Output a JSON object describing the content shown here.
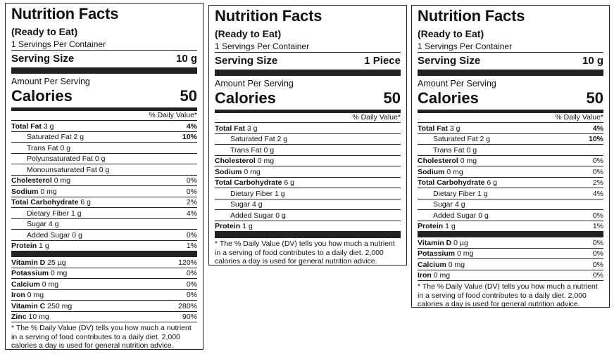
{
  "labels": [
    {
      "title": "Nutrition Facts",
      "subtitle": "(Ready to Eat)",
      "servings_per_container": "1 Servings Per Container",
      "serving_size_label": "Serving Size",
      "serving_size_value": "10 g",
      "amount_per_serving": "Amount Per Serving",
      "calories_label": "Calories",
      "calories_value": "50",
      "dv_header": "% Daily Value*",
      "rows": [
        {
          "name": "Total Fat",
          "amount": "3 g",
          "pct": "4%"
        },
        {
          "name": "Saturated Fat",
          "amount": "2 g",
          "pct": "10%"
        },
        {
          "name": "Trans Fat",
          "amount": "0 g",
          "pct": ""
        },
        {
          "name": "Polyunsaturated Fat",
          "amount": "0 g",
          "pct": ""
        },
        {
          "name": "Monounsaturated Fat",
          "amount": "0 g",
          "pct": ""
        },
        {
          "name": "Cholesterol",
          "amount": "0 mg",
          "pct": "0%"
        },
        {
          "name": "Sodium",
          "amount": "0 mg",
          "pct": "0%"
        },
        {
          "name": "Total Carbohydrate",
          "amount": "6 g",
          "pct": "2%"
        },
        {
          "name": "Dietary Fiber",
          "amount": "1 g",
          "pct": "4%"
        },
        {
          "name": "Sugar",
          "amount": "4 g",
          "pct": ""
        },
        {
          "name": "Added Sugar",
          "amount": "0 g",
          "pct": "0%"
        },
        {
          "name": "Protein",
          "amount": "1 g",
          "pct": "1%"
        }
      ],
      "vitamins": [
        {
          "name": "Vitamin D",
          "amount": "25 µg",
          "pct": "120%"
        },
        {
          "name": "Potassium",
          "amount": "0 mg",
          "pct": "0%"
        },
        {
          "name": "Calcium",
          "amount": "0 mg",
          "pct": "0%"
        },
        {
          "name": "Iron",
          "amount": "0 mg",
          "pct": "0%"
        },
        {
          "name": "Vitamin C",
          "amount": "250 mg",
          "pct": "280%"
        },
        {
          "name": "Zinc",
          "amount": "10 mg",
          "pct": "90%"
        }
      ],
      "footnote": "* The % Daily Value (DV) tells you how much a nutrient in a serving of food contributes to a daily diet. 2,000 calories a day is used for general nutrition advice."
    },
    {
      "title": "Nutrition Facts",
      "subtitle": "(Ready to Eat)",
      "servings_per_container": "1 Servings Per Container",
      "serving_size_label": "Serving Size",
      "serving_size_value": "1 Piece",
      "amount_per_serving": "Amount Per Serving",
      "calories_label": "Calories",
      "calories_value": "50",
      "dv_header": "% Daily Value*",
      "rows": [
        {
          "name": "Total Fat",
          "amount": "3 g",
          "pct": ""
        },
        {
          "name": "Saturated Fat",
          "amount": "2 g",
          "pct": ""
        },
        {
          "name": "Trans Fat",
          "amount": "0 g",
          "pct": ""
        },
        {
          "name": "Cholesterol",
          "amount": "0 mg",
          "pct": ""
        },
        {
          "name": "Sodium",
          "amount": "0 mg",
          "pct": ""
        },
        {
          "name": "Total Carbohydrate",
          "amount": "6 g",
          "pct": ""
        },
        {
          "name": "Dietary Fiber",
          "amount": "1 g",
          "pct": ""
        },
        {
          "name": "Sugar",
          "amount": "4 g",
          "pct": ""
        },
        {
          "name": "Added Sugar",
          "amount": "0 g",
          "pct": ""
        },
        {
          "name": "Protein",
          "amount": "1 g",
          "pct": ""
        }
      ],
      "footnote": "* The % Daily Value (DV) tells you how much a nutrient in a serving of food contributes to a daily diet. 2,000 calories a day is used for general nutrition advice."
    },
    {
      "title": "Nutrition Facts",
      "subtitle": "(Ready to Eat)",
      "servings_per_container": "1 Servings Per Container",
      "serving_size_label": "Serving Size",
      "serving_size_value": "10 g",
      "amount_per_serving": "Amount Per Serving",
      "calories_label": "Calories",
      "calories_value": "50",
      "dv_header": "% Daily Value*",
      "rows": [
        {
          "name": "Total Fat",
          "amount": "3 g",
          "pct": "4%"
        },
        {
          "name": "Saturated Fat",
          "amount": "2 g",
          "pct": "10%"
        },
        {
          "name": "Trans Fat",
          "amount": "0 g",
          "pct": ""
        },
        {
          "name": "Cholesterol",
          "amount": "0 mg",
          "pct": "0%"
        },
        {
          "name": "Sodium",
          "amount": "0 mg",
          "pct": "0%"
        },
        {
          "name": "Total Carbohydrate",
          "amount": "6 g",
          "pct": "2%"
        },
        {
          "name": "Dietary Fiber",
          "amount": "1 g",
          "pct": "4%"
        },
        {
          "name": "Sugar",
          "amount": "4 g",
          "pct": ""
        },
        {
          "name": "Added Sugar",
          "amount": "0 g",
          "pct": "0%"
        },
        {
          "name": "Protein",
          "amount": "1 g",
          "pct": "1%"
        }
      ],
      "vitamins": [
        {
          "name": "Vitamin D",
          "amount": "0 µg",
          "pct": "0%"
        },
        {
          "name": "Potassium",
          "amount": "0 mg",
          "pct": "0%"
        },
        {
          "name": "Calcium",
          "amount": "0 mg",
          "pct": "0%"
        },
        {
          "name": "Iron",
          "amount": "0 mg",
          "pct": "0%"
        }
      ],
      "footnote": "* The % Daily Value (DV) tells you how much a nutrient in a serving of food contributes to a daily diet. 2,000 calories a day is used for general nutrition advice."
    }
  ]
}
